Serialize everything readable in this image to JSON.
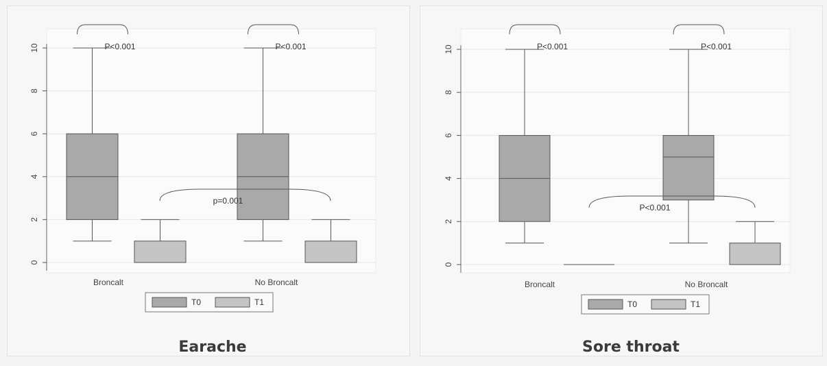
{
  "chart_data": [
    {
      "type": "boxplot",
      "caption": "Earache",
      "categories": [
        "Broncalt",
        "No Broncalt"
      ],
      "ylim": [
        0,
        10
      ],
      "yticks": [
        0,
        2,
        4,
        6,
        8,
        10
      ],
      "grid": true,
      "legend": {
        "placement": "bottom",
        "entries": [
          "T0",
          "T1"
        ]
      },
      "series": [
        {
          "name": "T0",
          "color": "#a9a9a9",
          "boxes": [
            {
              "min": 1,
              "q1": 2,
              "median": 4,
              "q3": 6,
              "max": 10
            },
            {
              "min": 1,
              "q1": 2,
              "median": 4,
              "q3": 6,
              "max": 10
            }
          ]
        },
        {
          "name": "T1",
          "color": "#c4c4c4",
          "boxes": [
            {
              "min": 0,
              "q1": 0,
              "median": 0,
              "q3": 1,
              "max": 2
            },
            {
              "min": 0,
              "q1": 0,
              "median": 0,
              "q3": 1,
              "max": 2
            }
          ]
        }
      ],
      "annotations": [
        {
          "text": "P<0.001",
          "group": 0
        },
        {
          "text": "P<0.001",
          "group": 1
        },
        {
          "text": "p=0.001",
          "group": "between"
        }
      ]
    },
    {
      "type": "boxplot",
      "caption": "Sore throat",
      "categories": [
        "Broncalt",
        "No Broncalt"
      ],
      "ylim": [
        0,
        10
      ],
      "yticks": [
        0,
        2,
        4,
        6,
        8,
        10
      ],
      "grid": true,
      "legend": {
        "placement": "bottom",
        "entries": [
          "T0",
          "T1"
        ]
      },
      "series": [
        {
          "name": "T0",
          "color": "#a9a9a9",
          "boxes": [
            {
              "min": 1,
              "q1": 2,
              "median": 4,
              "q3": 6,
              "max": 10
            },
            {
              "min": 1,
              "q1": 3,
              "median": 5,
              "q3": 6,
              "max": 10
            }
          ]
        },
        {
          "name": "T1",
          "color": "#c4c4c4",
          "boxes": [
            {
              "min": 0,
              "q1": 0,
              "median": 0,
              "q3": 0,
              "max": 0
            },
            {
              "min": 0,
              "q1": 0,
              "median": 0,
              "q3": 1,
              "max": 2
            }
          ]
        }
      ],
      "annotations": [
        {
          "text": "P<0.001",
          "group": 0
        },
        {
          "text": "P<0.001",
          "group": 1
        },
        {
          "text": "P<0.001",
          "group": "between"
        }
      ]
    }
  ]
}
